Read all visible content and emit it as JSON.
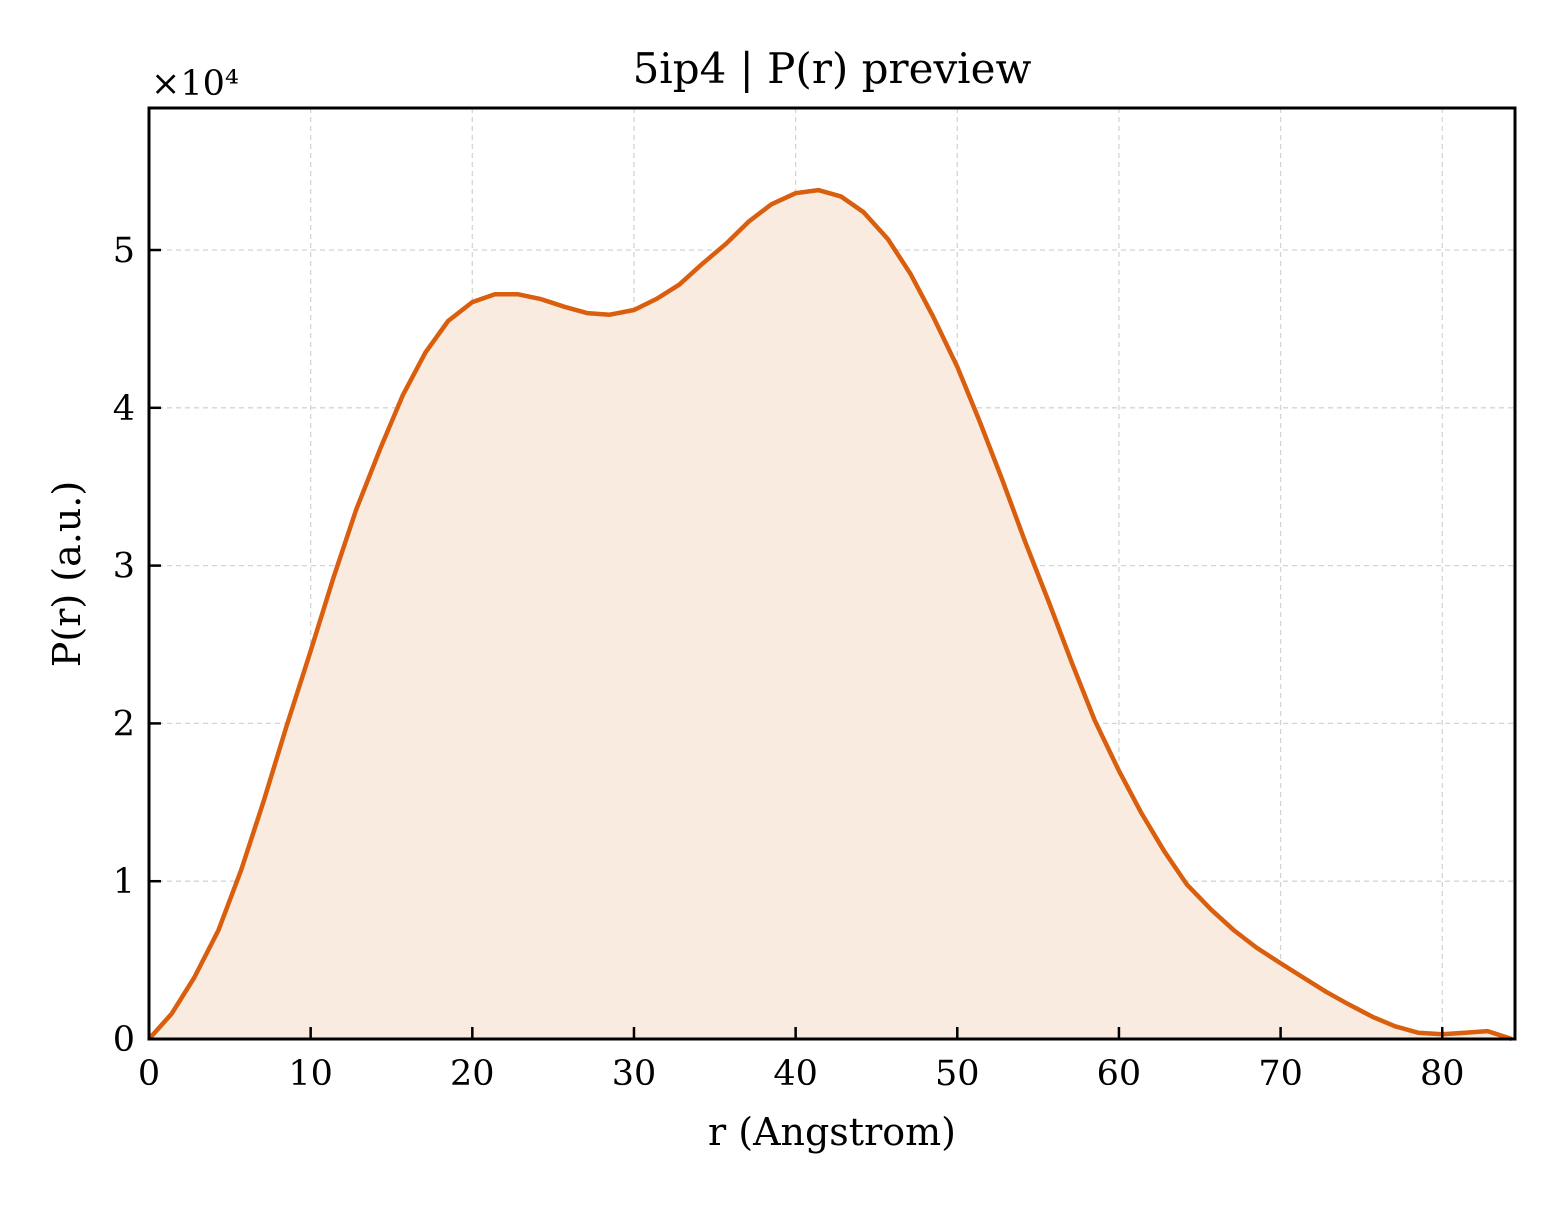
{
  "chart_data": {
    "type": "area",
    "title": "5ip4 | P(r) preview",
    "xlabel": "r (Angstrom)",
    "ylabel": "P(r) (a.u.)",
    "y_multiplier": "×10⁴",
    "xlim": [
      0,
      84.5
    ],
    "ylim": [
      0,
      5.9
    ],
    "y_scale_factor": 10000,
    "grid": true,
    "x_ticks": [
      0,
      10,
      20,
      30,
      40,
      50,
      60,
      70,
      80
    ],
    "y_ticks": [
      0,
      1,
      2,
      3,
      4,
      5
    ],
    "x_tick_labels": [
      "0",
      "10",
      "20",
      "30",
      "40",
      "50",
      "60",
      "70",
      "80"
    ],
    "y_tick_labels": [
      "0",
      "1",
      "2",
      "3",
      "4",
      "5"
    ],
    "series": [
      {
        "color": "#d95f0e",
        "fill_color": "#f9ebe0",
        "x": [
          0,
          1.4,
          2.8,
          4.3,
          5.7,
          7.1,
          8.5,
          10.0,
          11.4,
          12.8,
          14.3,
          15.7,
          17.1,
          18.5,
          20.0,
          21.4,
          22.8,
          24.2,
          25.7,
          27.1,
          28.5,
          30.0,
          31.4,
          32.8,
          34.2,
          35.7,
          37.1,
          38.5,
          40.0,
          41.4,
          42.8,
          44.2,
          45.7,
          47.1,
          48.5,
          50.0,
          51.4,
          52.8,
          54.2,
          55.7,
          57.1,
          58.5,
          60.0,
          61.4,
          62.8,
          64.2,
          65.7,
          67.1,
          68.5,
          70.0,
          71.4,
          72.8,
          74.2,
          75.7,
          77.1,
          78.5,
          80.0,
          81.4,
          82.8,
          84.3
        ],
        "y": [
          0.0,
          0.16,
          0.39,
          0.69,
          1.07,
          1.51,
          1.98,
          2.46,
          2.92,
          3.35,
          3.74,
          4.08,
          4.35,
          4.55,
          4.67,
          4.72,
          4.72,
          4.69,
          4.64,
          4.6,
          4.59,
          4.62,
          4.69,
          4.78,
          4.91,
          5.04,
          5.18,
          5.29,
          5.36,
          5.38,
          5.34,
          5.24,
          5.07,
          4.85,
          4.58,
          4.26,
          3.91,
          3.54,
          3.15,
          2.76,
          2.38,
          2.02,
          1.7,
          1.43,
          1.19,
          0.98,
          0.82,
          0.69,
          0.58,
          0.48,
          0.39,
          0.3,
          0.22,
          0.14,
          0.08,
          0.04,
          0.03,
          0.04,
          0.05,
          0.0
        ]
      }
    ]
  }
}
